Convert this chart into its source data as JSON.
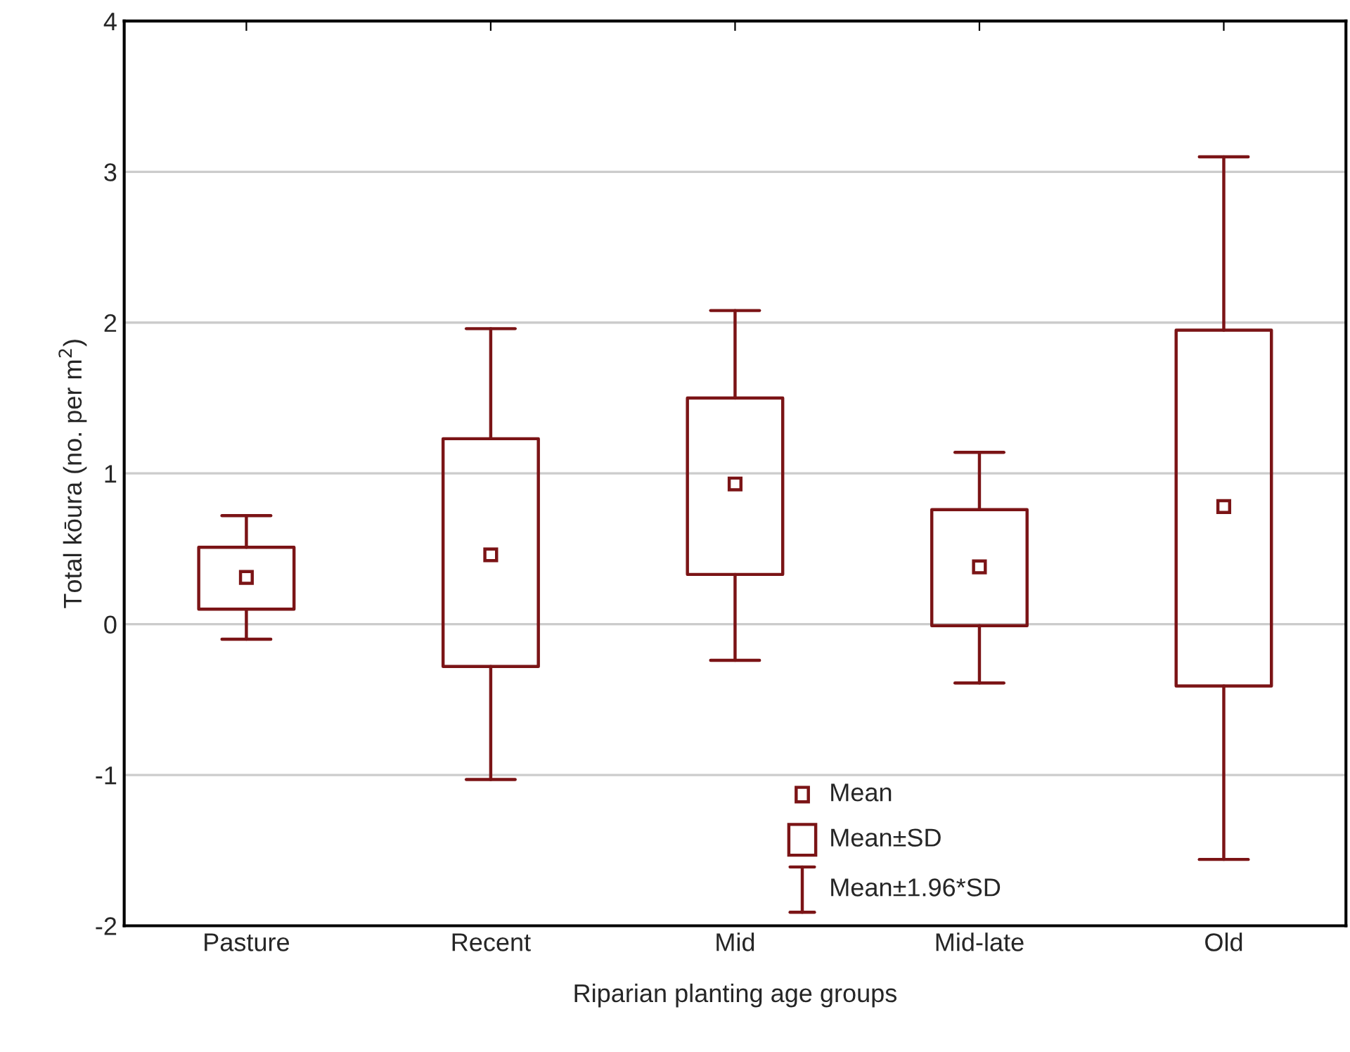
{
  "chart_data": {
    "type": "box",
    "categories": [
      "Pasture",
      "Recent",
      "Mid",
      "Mid-late",
      "Old"
    ],
    "boxes": [
      {
        "low": -0.1,
        "q1": 0.1,
        "q3": 0.51,
        "high": 0.72,
        "mean": 0.31
      },
      {
        "low": -1.03,
        "q1": -0.28,
        "q3": 1.23,
        "high": 1.96,
        "mean": 0.46
      },
      {
        "low": -0.24,
        "q1": 0.33,
        "q3": 1.5,
        "high": 2.08,
        "mean": 0.93
      },
      {
        "low": -0.39,
        "q1": -0.01,
        "q3": 0.76,
        "high": 1.14,
        "mean": 0.38
      },
      {
        "low": -1.56,
        "q1": -0.41,
        "q3": 1.95,
        "high": 3.1,
        "mean": 0.78
      }
    ],
    "color": "#7b1416",
    "xlabel": "Riparian planting age groups",
    "ylabel": "Total kōura (no. per m$^{2}$)",
    "ylim": [
      -2,
      4
    ],
    "yticks": [
      -2,
      -1,
      0,
      1,
      2,
      3,
      4
    ],
    "grid": "y",
    "annotations": [
      "Mean",
      "Mean±SD",
      "Mean±1.96*SD"
    ]
  }
}
